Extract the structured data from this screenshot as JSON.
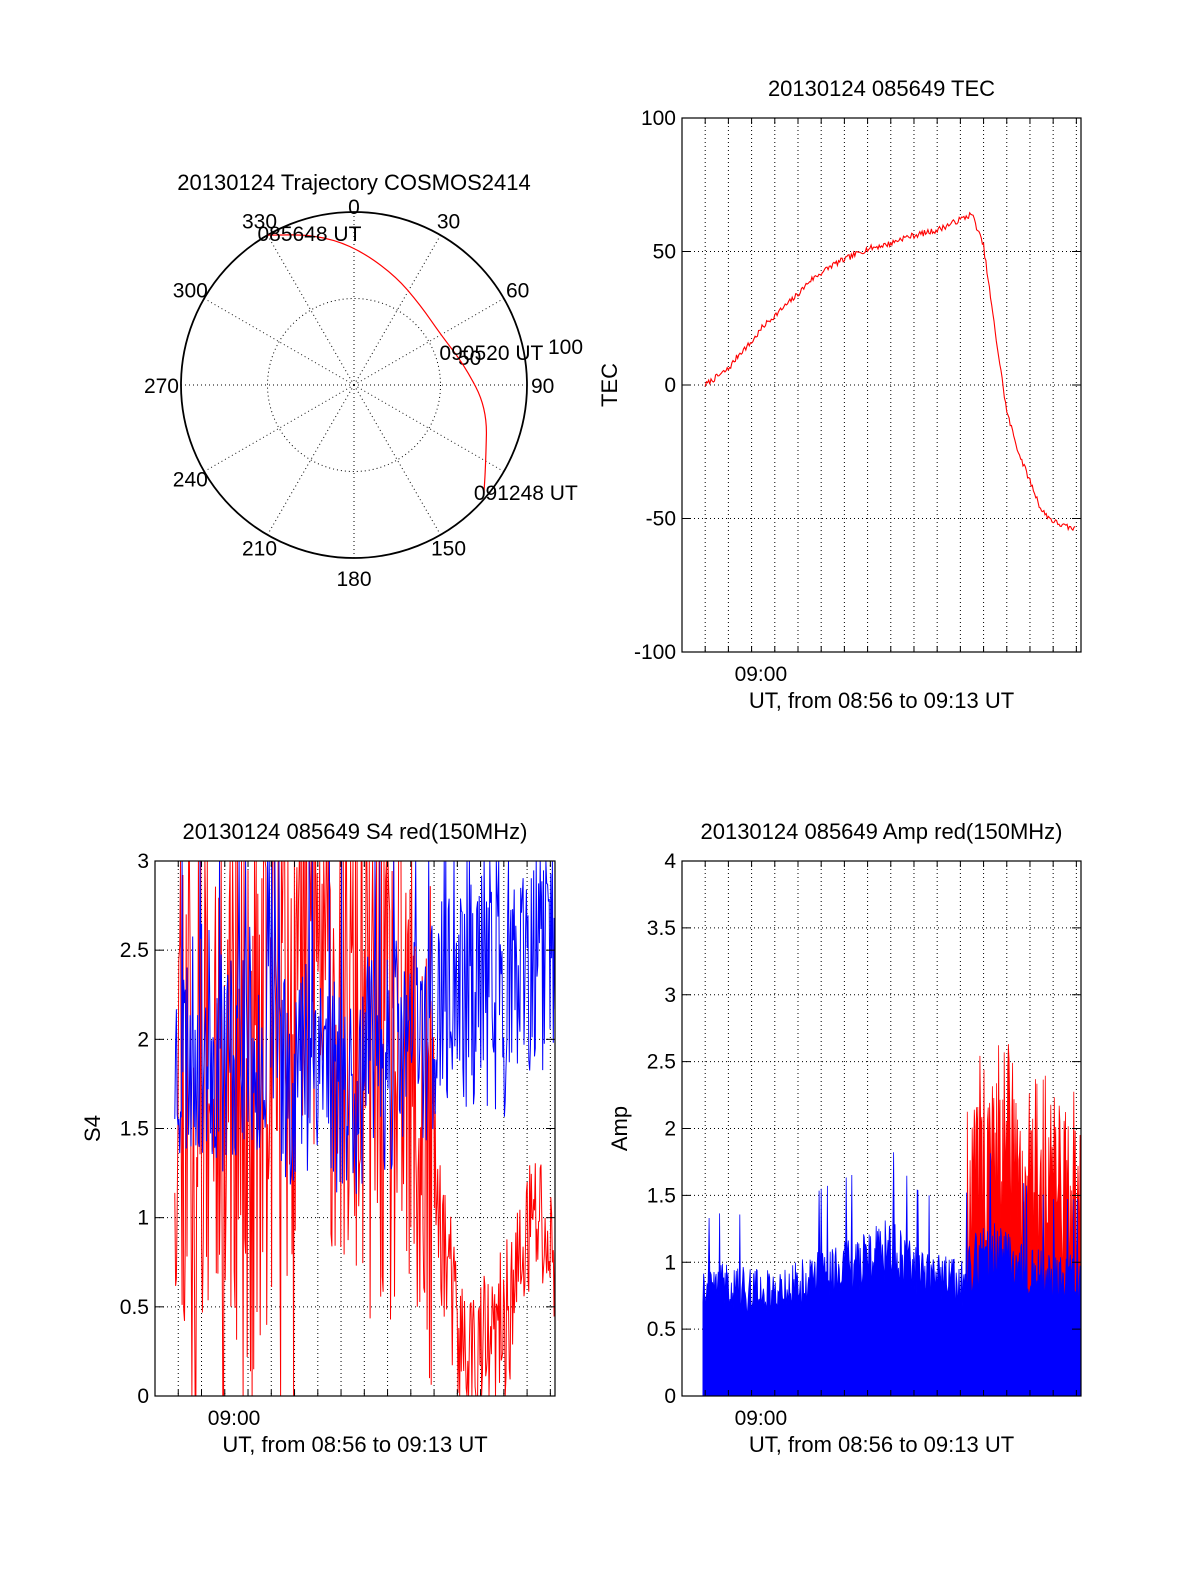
{
  "colors": {
    "red": "#ff0000",
    "blue": "#0000ff",
    "axis": "#000000"
  },
  "chart_data": [
    {
      "type": "polar",
      "title": "20130124 Trajectory COSMOS2414",
      "azimuth_labels": [
        "0",
        "30",
        "60",
        "90",
        "150",
        "180",
        "210",
        "240",
        "270",
        "300",
        "330"
      ],
      "azimuth_values": [
        0,
        30,
        60,
        90,
        150,
        180,
        210,
        240,
        270,
        300,
        330
      ],
      "radius_labels": [
        "50",
        "100"
      ],
      "series": [
        {
          "color": "red",
          "points": [
            [
              330,
              100
            ],
            [
              345,
              90
            ],
            [
              0,
              80
            ],
            [
              20,
              68
            ],
            [
              40,
              60
            ],
            [
              60,
              58
            ],
            [
              80,
              65
            ],
            [
              100,
              78
            ],
            [
              120,
              88
            ],
            [
              130,
              98
            ]
          ]
        }
      ],
      "annotations": [
        {
          "text": "085648 UT",
          "az": 330,
          "r": 100
        },
        {
          "text": "090520 UT",
          "az": 72,
          "r": 58
        },
        {
          "text": "091248 UT",
          "az": 130,
          "r": 98
        }
      ]
    },
    {
      "type": "line",
      "title": "20130124 085649 TEC",
      "xlabel": "UT, from 08:56 to 09:13 UT",
      "ylabel": "TEC",
      "xlim": [
        0,
        17.2
      ],
      "ylim": [
        -100,
        100
      ],
      "yticks": [
        "-100",
        "-50",
        "0",
        "50",
        "100"
      ],
      "ytick_values": [
        -100,
        -50,
        0,
        50,
        100
      ],
      "xticks": [
        {
          "label": "09:00",
          "value": 3.4
        }
      ],
      "grid": true,
      "series": [
        {
          "color": "red",
          "x": [
            1.0,
            1.5,
            2.0,
            2.5,
            3.0,
            3.5,
            4.0,
            4.5,
            5.0,
            5.5,
            6.0,
            6.5,
            7.0,
            7.5,
            8.0,
            8.5,
            9.0,
            9.5,
            10.0,
            10.5,
            11.0,
            11.5,
            12.0,
            12.5,
            13.0,
            13.5,
            14.0,
            14.5,
            15.0,
            15.5,
            16.0,
            16.5,
            17.0
          ],
          "y": [
            0,
            3,
            6,
            12,
            16,
            22,
            26,
            30,
            34,
            39,
            42,
            45,
            47,
            49,
            51,
            52,
            53,
            55,
            56,
            57,
            58,
            60,
            62,
            64,
            52,
            20,
            -10,
            -25,
            -36,
            -47,
            -51,
            -53,
            -54
          ]
        }
      ]
    },
    {
      "type": "line",
      "title": "20130124 085649 S4 red(150MHz)",
      "xlabel": "UT, from 08:56 to 09:13 UT",
      "ylabel": "S4",
      "xlim": [
        0,
        17.2
      ],
      "ylim": [
        0,
        3
      ],
      "yticks": [
        "0",
        "0.5",
        "1",
        "1.5",
        "2",
        "2.5",
        "3"
      ],
      "ytick_values": [
        0,
        0.5,
        1,
        1.5,
        2,
        2.5,
        3
      ],
      "xticks": [
        {
          "label": "09:00",
          "value": 3.4
        }
      ],
      "grid": true,
      "series": [
        {
          "color": "red",
          "x": [
            0,
            1,
            2,
            3,
            4,
            5,
            6,
            7,
            8,
            9,
            10,
            11,
            12,
            12.5,
            13,
            13.5,
            14,
            14.5,
            15,
            15.5,
            16,
            16.5,
            17
          ],
          "y": [
            1.8,
            2.0,
            1.7,
            2.2,
            1.5,
            2.0,
            2.4,
            2.6,
            2.2,
            2.0,
            1.9,
            1.6,
            1.2,
            0.8,
            0.3,
            0.2,
            0.25,
            0.25,
            0.4,
            0.6,
            0.9,
            1.0,
            0.8
          ]
        },
        {
          "color": "blue",
          "x": [
            0,
            1,
            2,
            3,
            4,
            5,
            6,
            7,
            8,
            9,
            10,
            11,
            12,
            13,
            14,
            15,
            16,
            17
          ],
          "y": [
            1.8,
            1.9,
            2.0,
            1.9,
            2.0,
            1.9,
            1.8,
            2.0,
            1.7,
            1.8,
            1.9,
            2.0,
            2.1,
            2.2,
            2.3,
            2.2,
            2.3,
            2.4
          ]
        }
      ]
    },
    {
      "type": "line",
      "title": "20130124 085649 Amp red(150MHz)",
      "xlabel": "UT, from 08:56 to 09:13 UT",
      "ylabel": "Amp",
      "xlim": [
        0,
        17.2
      ],
      "ylim": [
        0,
        4
      ],
      "yticks": [
        "0",
        "0.5",
        "1",
        "1.5",
        "2",
        "2.5",
        "3",
        "3.5",
        "4"
      ],
      "ytick_values": [
        0,
        0.5,
        1,
        1.5,
        2,
        2.5,
        3,
        3.5,
        4
      ],
      "xticks": [
        {
          "label": "09:00",
          "value": 3.4
        }
      ],
      "grid": true,
      "series": [
        {
          "color": "red",
          "x": [
            12.3,
            12.8,
            13.3,
            13.8,
            14.3,
            14.8,
            15.3,
            15.8,
            16.3,
            16.8,
            17.2
          ],
          "y": [
            2.4,
            2.5,
            2.55,
            2.6,
            2.5,
            2.45,
            2.4,
            2.35,
            2.3,
            2.3,
            2.2
          ]
        },
        {
          "color": "blue",
          "x": [
            1,
            2,
            3,
            4,
            5,
            6,
            7,
            8,
            9,
            10,
            11,
            12,
            13,
            14,
            15,
            16,
            17
          ],
          "y": [
            0.85,
            0.9,
            0.85,
            0.85,
            0.9,
            1.0,
            1.05,
            1.1,
            1.2,
            1.0,
            0.95,
            0.9,
            1.2,
            1.1,
            1.0,
            0.95,
            0.95
          ]
        }
      ]
    }
  ]
}
